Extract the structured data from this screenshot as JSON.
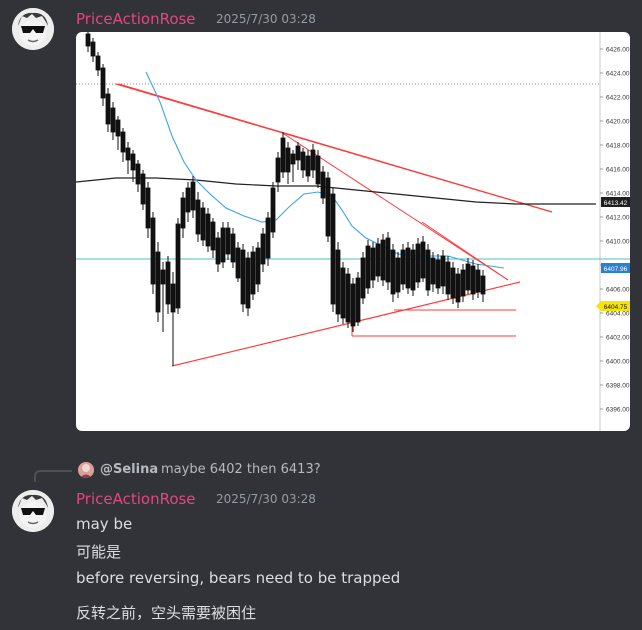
{
  "messages": [
    {
      "author": "PriceActionRose",
      "timestamp": "2025/7/30 03:28",
      "attachment": "chart-image"
    },
    {
      "author": "PriceActionRose",
      "timestamp": "2025/7/30 03:28",
      "reply": {
        "mention": "@Selina",
        "snippet": "maybe 6402 then 6413?"
      },
      "lines": [
        "may be",
        "可能是",
        "before reversing, bears need to be trapped",
        "反转之前，空头需要被困住"
      ]
    }
  ],
  "chart": {
    "price_axis": [
      "6426.00",
      "6424.00",
      "6422.00",
      "6420.00",
      "6418.00",
      "6416.00",
      "6414.00",
      "6412.00",
      "6410.00",
      "6408.00",
      "6406.00",
      "6404.00",
      "6402.00",
      "6400.00",
      "6398.00",
      "6396.00"
    ],
    "badges": {
      "dark": "6413.42",
      "cyan": "6407.96",
      "yellow": "6404.75"
    }
  },
  "colors": {
    "username": "#e0487f",
    "background": "#313338",
    "trendline": "#ff3b3b",
    "ma_fast": "#3ba3e6",
    "ma_slow": "#222222"
  }
}
